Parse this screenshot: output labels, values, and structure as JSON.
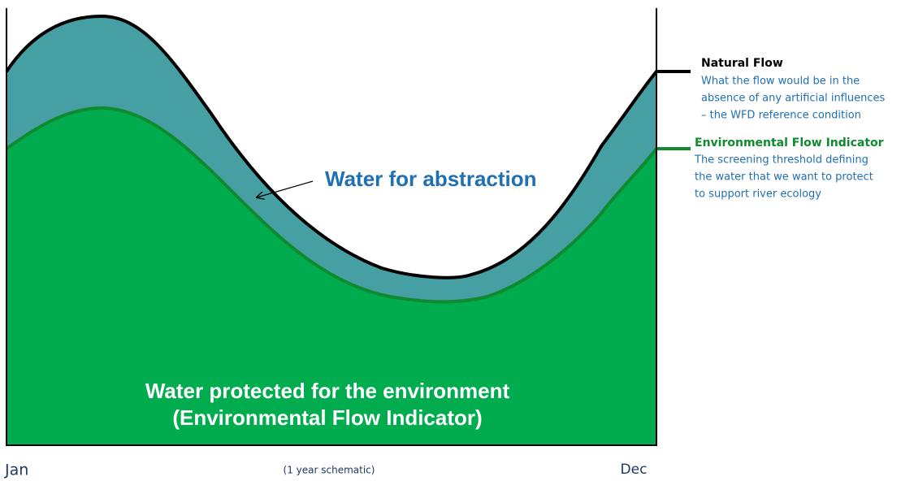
{
  "diagram": {
    "natural_flow": {
      "title": "Natural Flow",
      "lines": [
        "What the flow would be in the",
        "absence of any artificial influences",
        "– the WFD reference condition"
      ]
    },
    "efi": {
      "title": "Environmental Flow Indicator",
      "lines": [
        "The screening threshold defining",
        "the water that we want to protect",
        "to support river ecology"
      ]
    },
    "abstraction_label": "Water for abstraction",
    "protected_label": [
      "Water protected for the environment",
      "(Environmental Flow Indicator)"
    ],
    "x_start": "Jan",
    "x_note": "(1 year schematic)",
    "x_end": "Dec"
  }
}
